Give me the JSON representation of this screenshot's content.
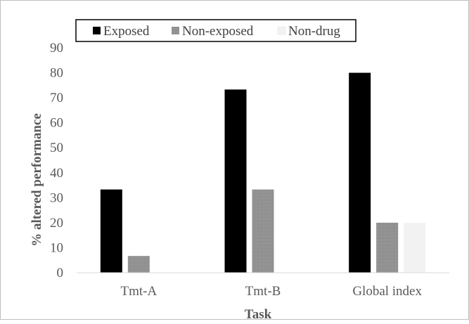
{
  "chart_data": {
    "type": "bar",
    "title": "",
    "xlabel": "Task",
    "ylabel": "% altered performance",
    "ylim": [
      0,
      90
    ],
    "yticks": [
      0,
      10,
      20,
      30,
      40,
      50,
      60,
      70,
      80,
      90
    ],
    "grid": false,
    "legend_position": "top",
    "categories": [
      "Tmt-A",
      "Tmt-B",
      "Global index"
    ],
    "series": [
      {
        "name": "Exposed",
        "color": "#000000",
        "values": [
          33.3,
          73.3,
          80.0
        ]
      },
      {
        "name": "Non-exposed",
        "color": "#8c8c8c",
        "values": [
          6.7,
          33.3,
          20.0
        ]
      },
      {
        "name": "Non-drug",
        "color": "#f2f2f2",
        "values": [
          0,
          0,
          20.0
        ]
      }
    ]
  }
}
